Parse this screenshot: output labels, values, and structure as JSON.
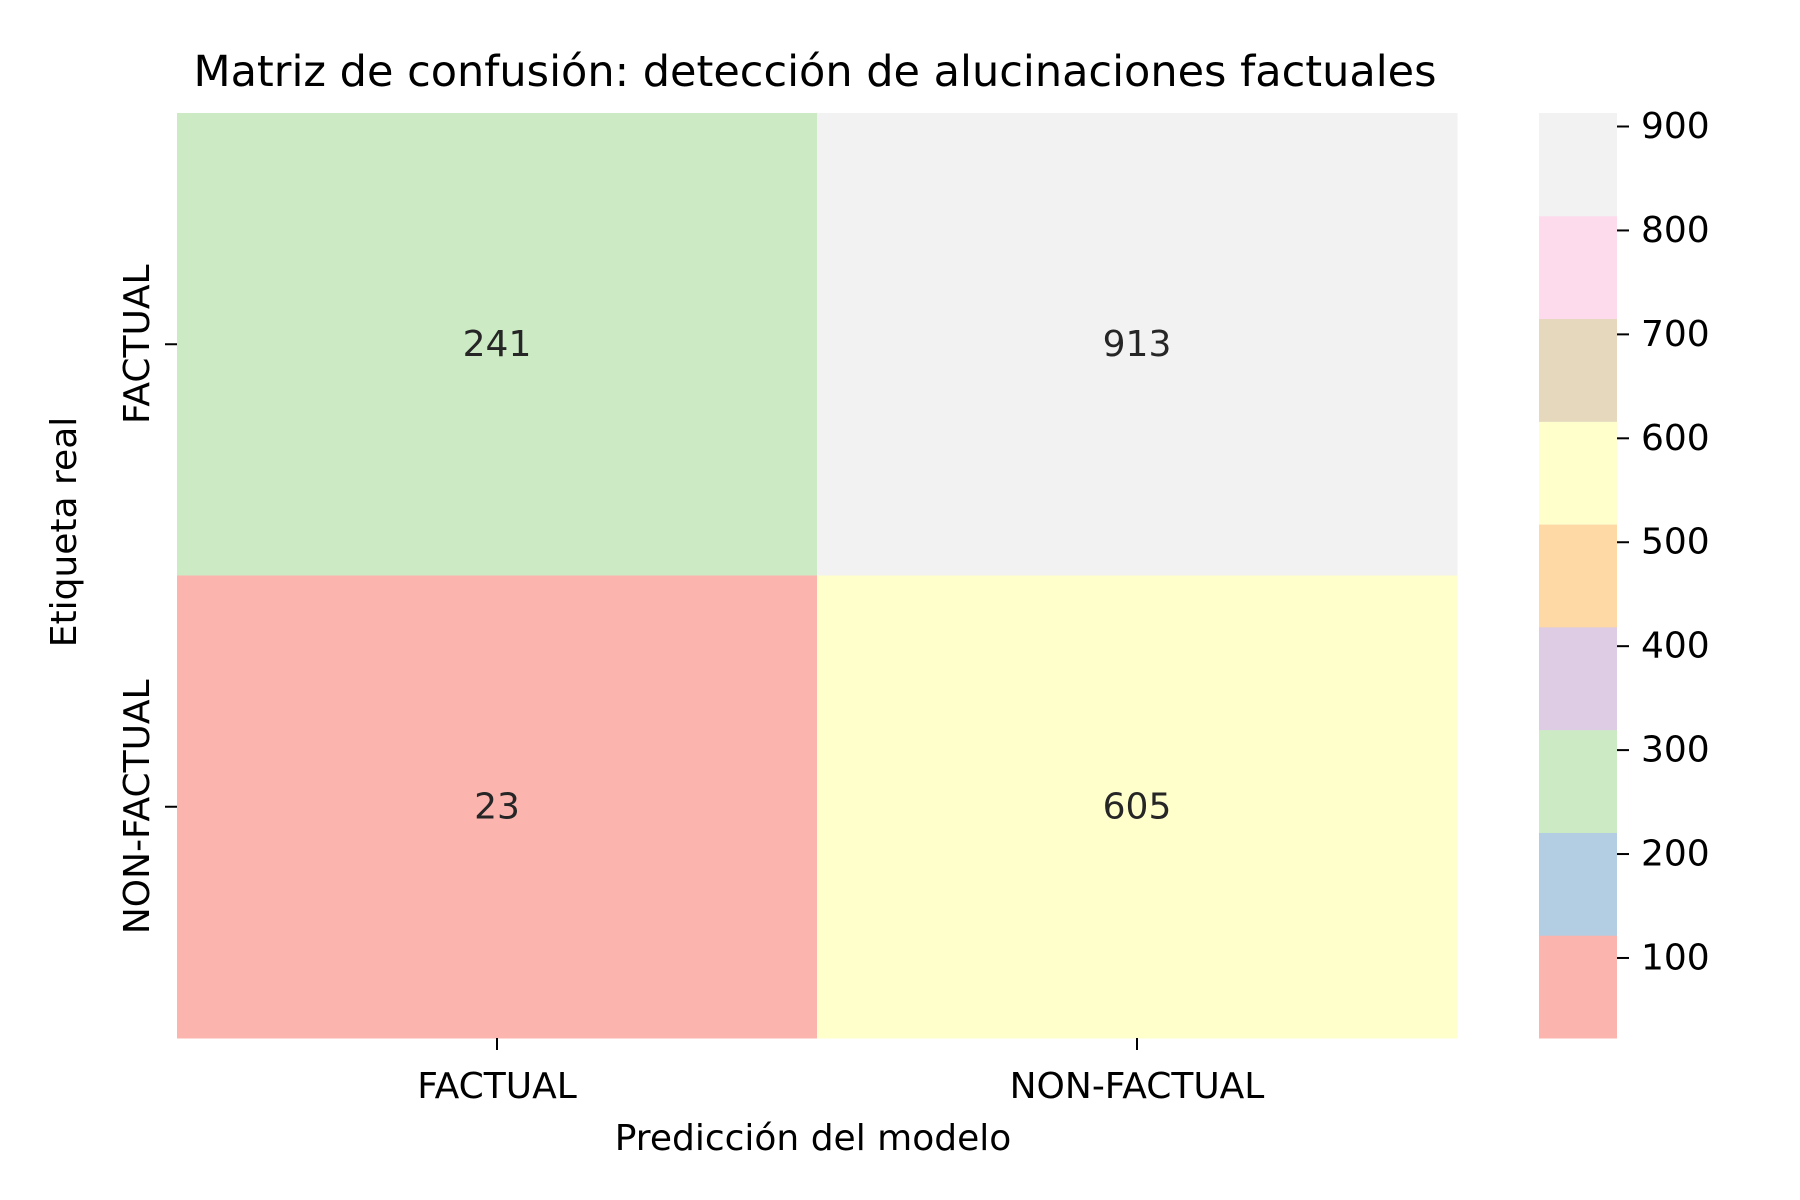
{
  "chart_data": {
    "type": "heatmap",
    "title": "Matriz de confusión: detección de alucinaciones factuales",
    "xlabel": "Predicción del modelo",
    "ylabel": "Etiqueta real",
    "x_categories": [
      "FACTUAL",
      "NON-FACTUAL"
    ],
    "y_categories": [
      "FACTUAL",
      "NON-FACTUAL"
    ],
    "values": [
      [
        241,
        913
      ],
      [
        23,
        605
      ]
    ],
    "colormap": "Pastel1",
    "colorbar": {
      "ticks": [
        100,
        200,
        300,
        400,
        500,
        600,
        700,
        800,
        900
      ],
      "range": [
        23,
        913
      ],
      "colors": [
        "#fbb4ae",
        "#b3cde3",
        "#ccebc5",
        "#decbe4",
        "#fed9a6",
        "#ffffcc",
        "#e5d8bd",
        "#fddaec",
        "#f2f2f2"
      ]
    },
    "annotations": true,
    "grid": false
  }
}
